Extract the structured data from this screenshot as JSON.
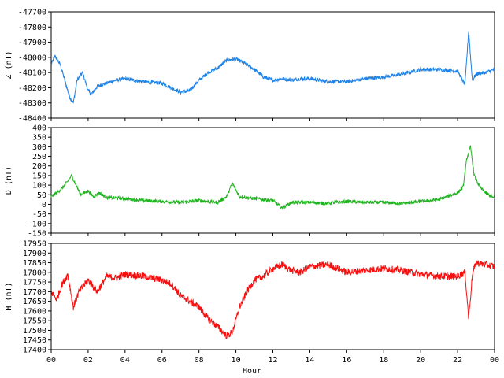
{
  "chart_data": [
    {
      "type": "line",
      "ylabel": "Z (nT)",
      "ylim": [
        -48400,
        -47700
      ],
      "yticks": [
        -47700,
        -47800,
        -47900,
        -48000,
        -48100,
        -48200,
        -48300,
        -48400
      ],
      "color": "#1e82e6",
      "noise": 12,
      "x": [
        0,
        0.2,
        0.5,
        0.8,
        1.0,
        1.2,
        1.4,
        1.7,
        2.0,
        2.2,
        2.5,
        3.0,
        3.5,
        4.0,
        5.0,
        6.0,
        6.5,
        7.0,
        7.5,
        8.0,
        8.5,
        9.0,
        9.5,
        10.0,
        10.5,
        11.0,
        11.5,
        12.0,
        12.5,
        13.0,
        13.5,
        14.0,
        15.0,
        16.0,
        17.0,
        18.0,
        19.0,
        20.0,
        21.0,
        22.0,
        22.4,
        22.6,
        22.7,
        22.8,
        23.0,
        23.5,
        24.0
      ],
      "y": [
        -48050,
        -47990,
        -48050,
        -48180,
        -48260,
        -48300,
        -48150,
        -48100,
        -48220,
        -48240,
        -48190,
        -48170,
        -48150,
        -48140,
        -48160,
        -48170,
        -48200,
        -48230,
        -48220,
        -48150,
        -48100,
        -48070,
        -48020,
        -48010,
        -48040,
        -48080,
        -48130,
        -48150,
        -48140,
        -48150,
        -48140,
        -48140,
        -48160,
        -48160,
        -48140,
        -48130,
        -48110,
        -48080,
        -48080,
        -48090,
        -48180,
        -47820,
        -48000,
        -48150,
        -48110,
        -48100,
        -48080
      ]
    },
    {
      "type": "line",
      "ylabel": "D (nT)",
      "ylim": [
        -150,
        400
      ],
      "yticks": [
        400,
        350,
        300,
        250,
        200,
        150,
        100,
        50,
        0,
        -50,
        -100,
        -150
      ],
      "color": "#1eb41e",
      "noise": 9,
      "x": [
        0,
        0.3,
        0.6,
        0.9,
        1.1,
        1.3,
        1.6,
        2.0,
        2.3,
        2.6,
        3.0,
        4.0,
        5.0,
        6.0,
        7.0,
        8.0,
        9.0,
        9.5,
        9.8,
        10.2,
        11.0,
        12.0,
        12.5,
        13.0,
        14.0,
        15.0,
        16.0,
        17.0,
        18.0,
        19.0,
        20.0,
        21.0,
        22.0,
        22.3,
        22.5,
        22.7,
        22.9,
        23.2,
        23.5,
        24.0
      ],
      "y": [
        40,
        60,
        85,
        120,
        150,
        110,
        50,
        70,
        40,
        60,
        35,
        30,
        20,
        15,
        10,
        20,
        10,
        40,
        110,
        40,
        30,
        20,
        -20,
        10,
        10,
        5,
        15,
        10,
        10,
        5,
        15,
        25,
        60,
        90,
        240,
        300,
        150,
        90,
        60,
        30
      ]
    },
    {
      "type": "line",
      "ylabel": "H (nT)",
      "xlabel": "Hour",
      "ylim": [
        17400,
        17950
      ],
      "yticks": [
        17950,
        17900,
        17850,
        17800,
        17750,
        17700,
        17650,
        17600,
        17550,
        17500,
        17450,
        17400
      ],
      "color": "#f50f0f",
      "noise": 18,
      "x": [
        0,
        0.3,
        0.6,
        0.9,
        1.2,
        1.5,
        2.0,
        2.5,
        3.0,
        3.5,
        4.0,
        5.0,
        6.0,
        6.5,
        7.0,
        7.5,
        8.0,
        8.5,
        9.0,
        9.5,
        9.8,
        10.2,
        10.6,
        11.0,
        11.5,
        12.0,
        12.5,
        13.0,
        13.5,
        14.0,
        15.0,
        16.0,
        17.0,
        18.0,
        19.0,
        20.0,
        21.0,
        22.0,
        22.4,
        22.6,
        22.8,
        23.0,
        23.5,
        24.0
      ],
      "y": [
        17700,
        17660,
        17740,
        17790,
        17620,
        17700,
        17760,
        17700,
        17780,
        17770,
        17790,
        17780,
        17760,
        17740,
        17680,
        17650,
        17620,
        17560,
        17520,
        17470,
        17490,
        17620,
        17700,
        17760,
        17780,
        17820,
        17840,
        17810,
        17800,
        17830,
        17840,
        17800,
        17810,
        17820,
        17810,
        17790,
        17780,
        17780,
        17800,
        17560,
        17790,
        17850,
        17840,
        17830
      ]
    }
  ],
  "xticks": [
    "00",
    "02",
    "04",
    "06",
    "08",
    "10",
    "12",
    "14",
    "16",
    "18",
    "20",
    "22",
    "00"
  ],
  "xlim": [
    0,
    24
  ]
}
